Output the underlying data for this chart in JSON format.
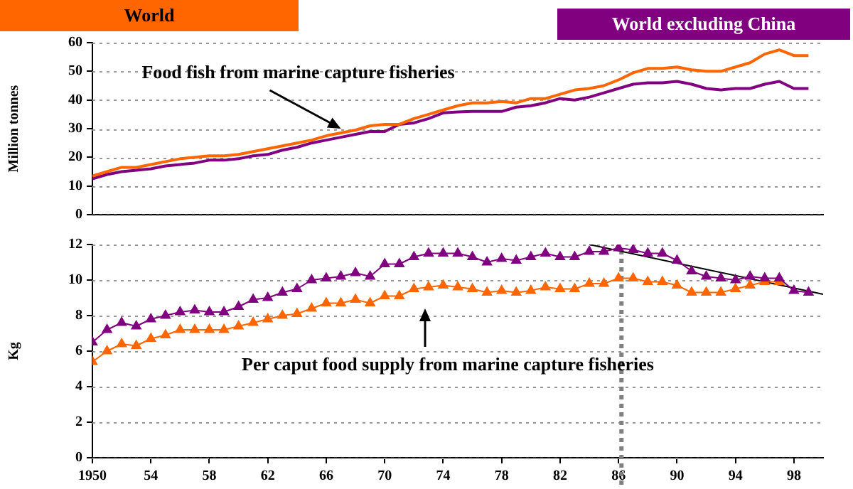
{
  "chart_data": [
    {
      "type": "line",
      "ylabel": "Million tonnes",
      "x": [
        1950,
        1951,
        1952,
        1953,
        1954,
        1955,
        1956,
        1957,
        1958,
        1959,
        1960,
        1961,
        1962,
        1963,
        1964,
        1965,
        1966,
        1967,
        1968,
        1969,
        1970,
        1971,
        1972,
        1973,
        1974,
        1975,
        1976,
        1977,
        1978,
        1979,
        1980,
        1981,
        1982,
        1983,
        1984,
        1985,
        1986,
        1987,
        1988,
        1989,
        1990,
        1991,
        1992,
        1993,
        1994,
        1995,
        1996,
        1997,
        1998,
        1999
      ],
      "series": [
        {
          "name": "World",
          "color": "#ff6600",
          "values": [
            13.5,
            15,
            16.5,
            16.5,
            17.5,
            18.5,
            19.5,
            20,
            20.5,
            20.5,
            21,
            22,
            23,
            24,
            25,
            26,
            27.5,
            28.5,
            29.5,
            31,
            31.5,
            31.5,
            33.5,
            35,
            36.5,
            38,
            39,
            39,
            39.5,
            39,
            40.5,
            40.5,
            42,
            43.5,
            44,
            45,
            47,
            49.5,
            51,
            51,
            51.5,
            50.5,
            50,
            50,
            51.5,
            53,
            56,
            57.5,
            55.5,
            55.5
          ]
        },
        {
          "name": "World excluding China",
          "color": "#800080",
          "values": [
            12.5,
            14,
            15,
            15.5,
            16,
            17,
            17.5,
            18,
            19,
            19,
            19.5,
            20.5,
            21,
            22.5,
            23.5,
            25,
            26,
            27,
            28,
            29,
            29,
            31.5,
            32,
            33.5,
            35.5,
            35.8,
            36,
            36,
            36,
            37.5,
            38,
            39,
            40.5,
            40,
            41,
            42.5,
            44,
            45.5,
            46,
            46,
            46.5,
            45.5,
            44,
            43.5,
            44,
            44,
            45.5,
            46.5,
            44,
            44
          ]
        }
      ],
      "xlim": [
        1950,
        2000
      ],
      "ylim": [
        0,
        60
      ],
      "yticks": [
        0,
        10,
        20,
        30,
        40,
        50,
        60
      ],
      "tick_labels": "y",
      "grid": "y",
      "legend": "top",
      "marker": "none",
      "annotations": [
        {
          "text": "Food fish from marine capture fisheries",
          "x": 1967,
          "y": 30
        }
      ]
    },
    {
      "type": "line",
      "ylabel": "Kg",
      "x": [
        1950,
        1951,
        1952,
        1953,
        1954,
        1955,
        1956,
        1957,
        1958,
        1959,
        1960,
        1961,
        1962,
        1963,
        1964,
        1965,
        1966,
        1967,
        1968,
        1969,
        1970,
        1971,
        1972,
        1973,
        1974,
        1975,
        1976,
        1977,
        1978,
        1979,
        1980,
        1981,
        1982,
        1983,
        1984,
        1985,
        1986,
        1987,
        1988,
        1989,
        1990,
        1991,
        1992,
        1993,
        1994,
        1995,
        1996,
        1997,
        1998,
        1999
      ],
      "series": [
        {
          "color": "#800080",
          "values": [
            6.5,
            7.2,
            7.6,
            7.4,
            7.8,
            8,
            8.2,
            8.3,
            8.2,
            8.2,
            8.5,
            8.9,
            9,
            9.3,
            9.5,
            10,
            10.1,
            10.2,
            10.4,
            10.2,
            10.9,
            10.9,
            11.3,
            11.5,
            11.5,
            11.5,
            11.3,
            11,
            11.2,
            11.1,
            11.3,
            11.5,
            11.3,
            11.3,
            11.6,
            11.6,
            11.8,
            11.7,
            11.5,
            11.5,
            11.1,
            10.5,
            10.2,
            10.1,
            10,
            10.2,
            10.1,
            10.1,
            9.4,
            9.3
          ]
        },
        {
          "color": "#ff6600",
          "values": [
            5.4,
            6,
            6.4,
            6.3,
            6.7,
            6.9,
            7.2,
            7.2,
            7.2,
            7.2,
            7.4,
            7.6,
            7.8,
            8,
            8.1,
            8.4,
            8.7,
            8.7,
            8.9,
            8.7,
            9.1,
            9.1,
            9.5,
            9.6,
            9.7,
            9.6,
            9.5,
            9.3,
            9.4,
            9.3,
            9.4,
            9.6,
            9.5,
            9.5,
            9.8,
            9.8,
            10.1,
            10.1,
            9.9,
            9.9,
            9.7,
            9.3,
            9.3,
            9.3,
            9.5,
            9.7,
            9.9,
            9.9,
            null,
            null
          ]
        },
        {
          "type": "line",
          "color": "#000000",
          "x": [
            1984,
            2000
          ],
          "values": [
            12,
            9.2
          ],
          "marker": "none"
        }
      ],
      "xlim": [
        1950,
        2000
      ],
      "ylim": [
        0,
        12
      ],
      "yticks": [
        0,
        2,
        4,
        6,
        8,
        10,
        12
      ],
      "xticks": [
        {
          "value": 1950,
          "label": "1950"
        },
        {
          "value": 1954,
          "label": "54"
        },
        {
          "value": 1958,
          "label": "58"
        },
        {
          "value": 1962,
          "label": "62"
        },
        {
          "value": 1966,
          "label": "66"
        },
        {
          "value": 1970,
          "label": "70"
        },
        {
          "value": 1974,
          "label": "74"
        },
        {
          "value": 1978,
          "label": "78"
        },
        {
          "value": 1982,
          "label": "82"
        },
        {
          "value": 1986,
          "label": "86"
        },
        {
          "value": 1990,
          "label": "90"
        },
        {
          "value": 1994,
          "label": "94"
        },
        {
          "value": 1998,
          "label": "98"
        }
      ],
      "grid": "y",
      "marker": "triangle",
      "ref_lines": [
        {
          "axis": "x",
          "value": 1986.2,
          "color": "#808080",
          "line_style": "dotted"
        }
      ],
      "annotations": [
        "Per caput food supply from marine capture fisheries"
      ]
    }
  ]
}
